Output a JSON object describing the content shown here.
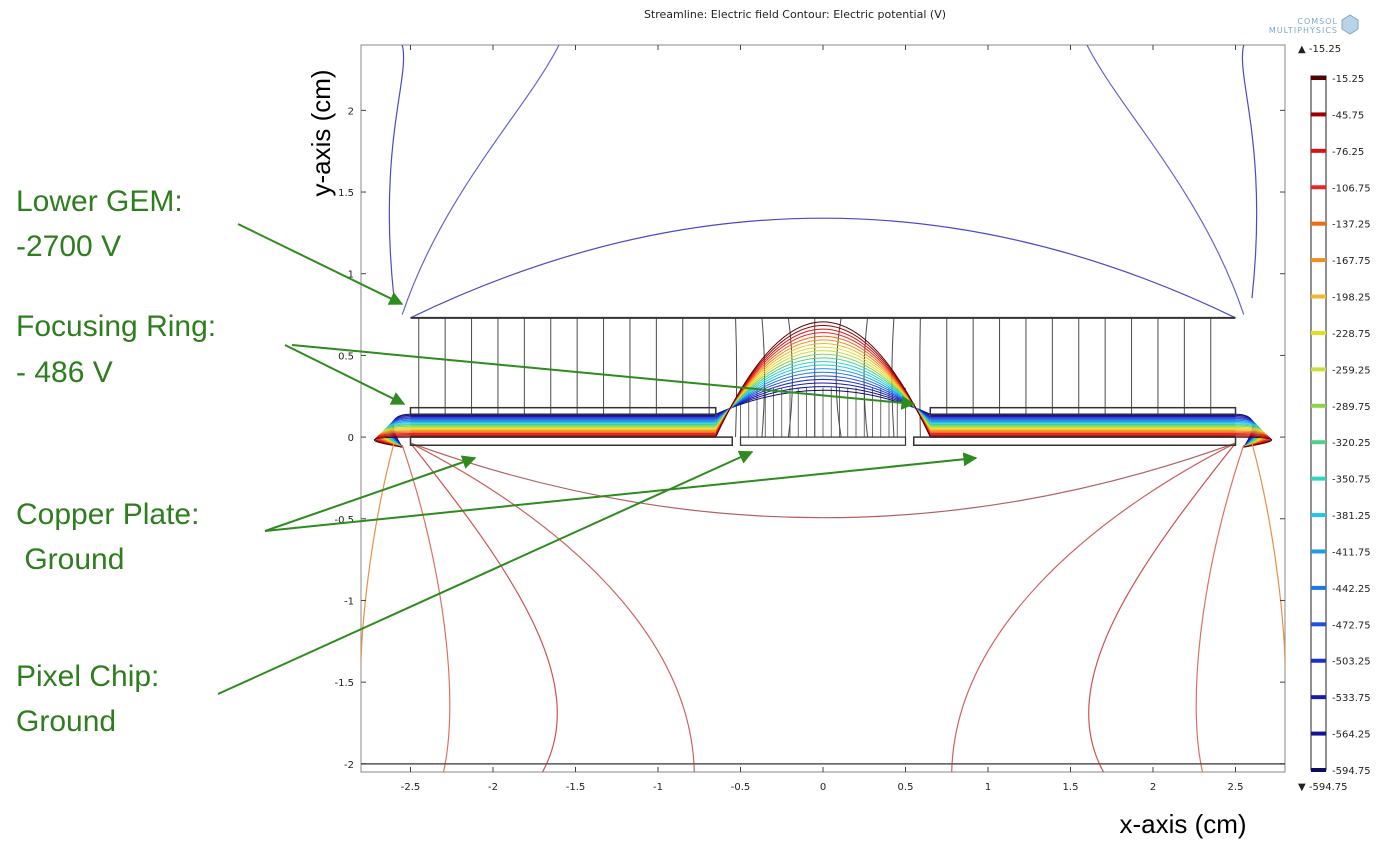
{
  "title": "Streamline: Electric field  Contour: Electric potential (V)",
  "logo": {
    "line1": "COMSOL",
    "line2": "MULTIPHYSICS"
  },
  "xaxis": {
    "label": "x-axis (cm)",
    "range": [
      -2.8,
      2.8
    ],
    "ticks": [
      "-2.5",
      "-2",
      "-1.5",
      "-1",
      "-0.5",
      "0",
      "0.5",
      "1",
      "1.5",
      "2",
      "2.5"
    ]
  },
  "yaxis": {
    "label": "y-axis (cm)",
    "range": [
      -2.05,
      2.4
    ],
    "ticks": [
      "2",
      "1.5",
      "1",
      "0.5",
      "0",
      "-0.5",
      "-1",
      "-1.5",
      "-2"
    ]
  },
  "colorbar": {
    "max_label": "▲ -15.25",
    "min_label": "▼ -594.75",
    "levels": [
      "-15.25",
      "-45.75",
      "-76.25",
      "-106.75",
      "-137.25",
      "-167.75",
      "-198.25",
      "-228.75",
      "-259.25",
      "-289.75",
      "-320.25",
      "-350.75",
      "-381.25",
      "-411.75",
      "-442.25",
      "-472.75",
      "-503.25",
      "-533.75",
      "-564.25",
      "-594.75"
    ],
    "colors": [
      "#550000",
      "#990000",
      "#dd1111",
      "#ee2222",
      "#f26a10",
      "#f48b1a",
      "#f6b62c",
      "#e6dc20",
      "#c6e03a",
      "#8ad44a",
      "#4ed088",
      "#2cd6c0",
      "#20c8e8",
      "#1e9ce6",
      "#1e76e6",
      "#1f4fe6",
      "#1e2dd0",
      "#1a1ab0",
      "#141490",
      "#0c0c60"
    ]
  },
  "annotations": [
    {
      "lines": [
        "Lower GEM:",
        "-2700 V"
      ]
    },
    {
      "lines": [
        "Focusing Ring:",
        "- 486 V"
      ]
    },
    {
      "lines": [
        "Copper Plate:",
        " Ground"
      ]
    },
    {
      "lines": [
        "Pixel Chip:",
        "Ground"
      ]
    }
  ],
  "colors": {
    "annotation": "#2e7d1e",
    "arrow": "#2e8b1e",
    "streamline": "#444444"
  }
}
